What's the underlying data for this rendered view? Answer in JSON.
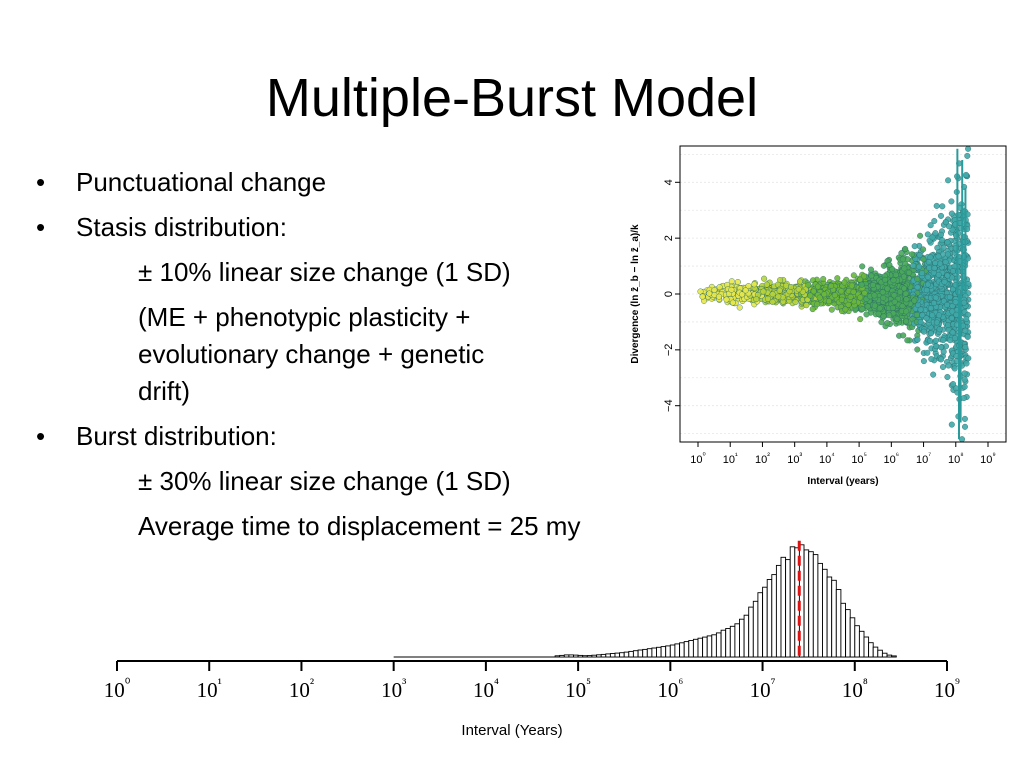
{
  "slide": {
    "title": "Multiple-Burst Model",
    "bullets": [
      {
        "text": "Punctuational change",
        "sub": []
      },
      {
        "text": "Stasis distribution:",
        "sub": [
          "± 10% linear size change (1 SD)",
          "(ME + phenotypic plasticity +",
          "evolutionary change + genetic",
          "drift)"
        ]
      },
      {
        "text": "Burst distribution:",
        "sub": [
          "± 30% linear size change (1 SD)",
          "Average time to displacement = 25 my"
        ]
      }
    ]
  },
  "chart_data": [
    {
      "type": "scatter",
      "title": "",
      "xlabel": "Interval (years)",
      "ylabel": "Divergence (ln z̄_b − ln z̄_a)/k",
      "xscale": "log10",
      "xlim": [
        0,
        9
      ],
      "ylim": [
        -5.3,
        5.3
      ],
      "xticks": [
        "10⁰",
        "10¹",
        "10²",
        "10³",
        "10⁴",
        "10⁵",
        "10⁶",
        "10⁷",
        "10⁸",
        "10⁹"
      ],
      "yticks": [
        -4,
        -2,
        0,
        2,
        4
      ],
      "grid": true,
      "spread_envelope": [
        {
          "log10_interval": 0.0,
          "sd": 0.12
        },
        {
          "log10_interval": 1.0,
          "sd": 0.14
        },
        {
          "log10_interval": 2.0,
          "sd": 0.16
        },
        {
          "log10_interval": 3.0,
          "sd": 0.18
        },
        {
          "log10_interval": 4.0,
          "sd": 0.2
        },
        {
          "log10_interval": 5.0,
          "sd": 0.28
        },
        {
          "log10_interval": 6.0,
          "sd": 0.45
        },
        {
          "log10_interval": 7.0,
          "sd": 0.9
        },
        {
          "log10_interval": 8.0,
          "sd": 1.6
        },
        {
          "log10_interval": 8.4,
          "sd": 2.3
        }
      ],
      "color_gradient": [
        "#e8e84a",
        "#b8d43a",
        "#6cb83a",
        "#4aa85a",
        "#40a8a8",
        "#8fd8e8"
      ]
    },
    {
      "type": "bar",
      "title": "",
      "xlabel": "Interval (Years)",
      "xscale": "log10",
      "xlim": [
        0,
        9
      ],
      "xticks": [
        "10⁰",
        "10¹",
        "10²",
        "10³",
        "10⁴",
        "10⁵",
        "10⁶",
        "10⁷",
        "10⁸",
        "10⁹"
      ],
      "bin_width_log10": 0.05,
      "range_log10": [
        3.0,
        8.5
      ],
      "profile_log10_interval": [
        3.0,
        4.7,
        4.9,
        5.1,
        5.5,
        6.0,
        6.5,
        6.8,
        7.0,
        7.2,
        7.35,
        7.45,
        7.6,
        7.8,
        8.0,
        8.2,
        8.35,
        8.5
      ],
      "profile_relative_frequency": [
        0.0,
        0.005,
        0.02,
        0.01,
        0.04,
        0.1,
        0.2,
        0.34,
        0.58,
        0.82,
        0.96,
        1.0,
        0.9,
        0.62,
        0.3,
        0.1,
        0.02,
        0.0
      ],
      "marker_label": "Average time to displacement = 25 my",
      "marker_value_years": 25000000,
      "marker_color": "#dd1111"
    }
  ]
}
